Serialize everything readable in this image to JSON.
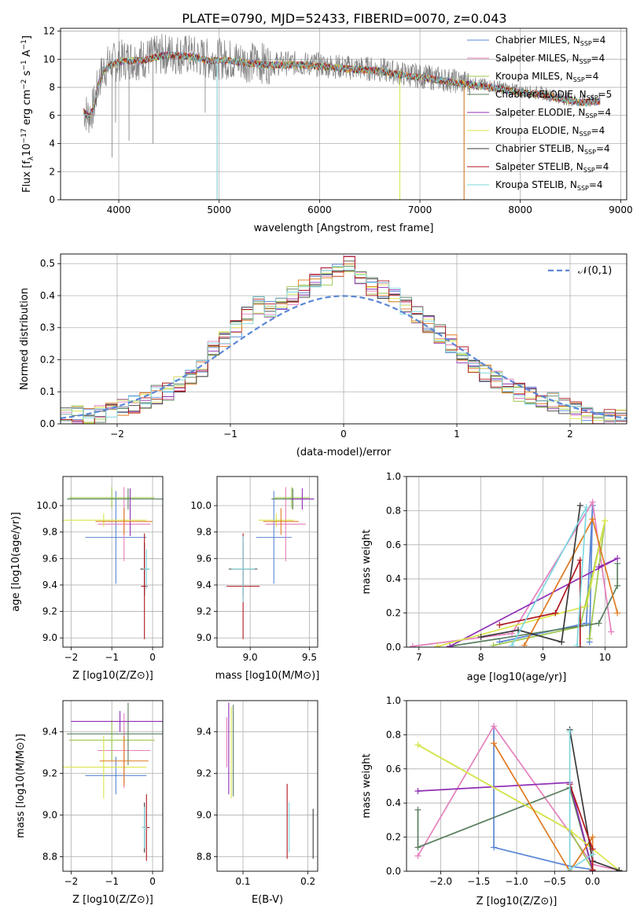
{
  "title": "PLATE=0790, MJD=52433, FIBERID=0070, z=0.043",
  "colors": {
    "Chabrier MILES": "#5b87d6",
    "Salpeter MILES": "#e57fbd",
    "Kroupa MILES": "#9ec74e",
    "Chabrier ELODIE": "#5a7f5f",
    "Salpeter ELODIE": "#8f2fb5",
    "Kroupa ELODIE": "#d9e64a",
    "Chabrier STELIB": "#3a3a3a",
    "Salpeter STELIB": "#b0161e",
    "Kroupa STELIB": "#7ed8e0",
    "orange": "#e07a20",
    "data": "#808080",
    "normal": "#5b87d6"
  },
  "chart_data": [
    {
      "id": "spectrum",
      "type": "line",
      "xlabel": "wavelength [Angstrom, rest frame]",
      "ylabel": "Flux [f_λ10^-17 erg cm^-2 s^-1 A^-1]",
      "xlim": [
        3420,
        9060
      ],
      "ylim": [
        0,
        12.2
      ],
      "xticks": [
        4000,
        5000,
        6000,
        7000,
        8000,
        9000
      ],
      "yticks": [
        0,
        2,
        4,
        6,
        8,
        10,
        12
      ],
      "legend_position": "top-right",
      "legend": [
        {
          "label": "Chabrier MILES, N",
          "sub": "SSP",
          "tail": "=4"
        },
        {
          "label": "Salpeter MILES, N",
          "sub": "SSP",
          "tail": "=4"
        },
        {
          "label": "Kroupa MILES, N",
          "sub": "SSP",
          "tail": "=4"
        },
        {
          "label": "Chabrier ELODIE, N",
          "sub": "SSP",
          "tail": "=5"
        },
        {
          "label": "Salpeter ELODIE, N",
          "sub": "SSP",
          "tail": "=4"
        },
        {
          "label": "Kroupa ELODIE, N",
          "sub": "SSP",
          "tail": "=4"
        },
        {
          "label": "Chabrier STELIB, N",
          "sub": "SSP",
          "tail": "=4"
        },
        {
          "label": "Salpeter STELIB, N",
          "sub": "SSP",
          "tail": "=4"
        },
        {
          "label": "Kroupa STELIB, N",
          "sub": "SSP",
          "tail": "=4"
        }
      ],
      "continuum": [
        [
          3650,
          6.4
        ],
        [
          3700,
          6.0
        ],
        [
          3750,
          6.6
        ],
        [
          3800,
          8.4
        ],
        [
          3850,
          9.3
        ],
        [
          3900,
          9.6
        ],
        [
          4000,
          9.9
        ],
        [
          4100,
          10.0
        ],
        [
          4200,
          10.0
        ],
        [
          4300,
          10.1
        ],
        [
          4400,
          10.3
        ],
        [
          4500,
          10.4
        ],
        [
          4700,
          10.3
        ],
        [
          4900,
          10.0
        ],
        [
          5100,
          10.0
        ],
        [
          5300,
          9.8
        ],
        [
          5500,
          9.7
        ],
        [
          5800,
          9.7
        ],
        [
          6000,
          9.6
        ],
        [
          6300,
          9.4
        ],
        [
          6560,
          9.3
        ],
        [
          6800,
          9.0
        ],
        [
          7000,
          8.8
        ],
        [
          7200,
          8.6
        ],
        [
          7400,
          8.4
        ],
        [
          7600,
          8.2
        ],
        [
          7800,
          8.0
        ],
        [
          8000,
          7.7
        ],
        [
          8200,
          7.6
        ],
        [
          8400,
          7.3
        ],
        [
          8600,
          7.0
        ],
        [
          8800,
          7.1
        ]
      ],
      "spikes_down": [
        [
          3933,
          3.0
        ],
        [
          3968,
          5.5
        ],
        [
          4102,
          4.2
        ],
        [
          4340,
          4.0
        ],
        [
          4861,
          6.2
        ],
        [
          4980,
          0.0
        ],
        [
          6800,
          0.0
        ],
        [
          7440,
          0.0
        ]
      ]
    },
    {
      "id": "residuals",
      "type": "histogram",
      "xlabel": "(data-model)/error",
      "ylabel": "Normed distribution",
      "xlim": [
        -2.5,
        2.5
      ],
      "ylim": [
        0,
        0.53
      ],
      "xticks": [
        -2,
        -1,
        0,
        1,
        2
      ],
      "yticks": [
        0.0,
        0.1,
        0.2,
        0.3,
        0.4,
        0.5
      ],
      "legend": "𝒩(0,1)",
      "legend_position": "top-right",
      "bin_width": 0.1,
      "series": [
        {
          "name": "Chabrier STELIB",
          "values": [
            0.02,
            0.03,
            0.02,
            0.03,
            0.04,
            0.05,
            0.06,
            0.07,
            0.09,
            0.1,
            0.12,
            0.14,
            0.17,
            0.23,
            0.27,
            0.3,
            0.34,
            0.37,
            0.36,
            0.38,
            0.4,
            0.42,
            0.44,
            0.46,
            0.48,
            0.5,
            0.45,
            0.43,
            0.42,
            0.4,
            0.37,
            0.34,
            0.31,
            0.28,
            0.25,
            0.22,
            0.19,
            0.16,
            0.14,
            0.12,
            0.1,
            0.09,
            0.08,
            0.07,
            0.06,
            0.04,
            0.03,
            0.02,
            0.02,
            0.02
          ]
        }
      ]
    },
    {
      "id": "age-vs-Z",
      "type": "errorbar",
      "xlabel": "Z [log10(Z/Z⊙)]",
      "ylabel": "age [log10(age/yr)]",
      "xlim": [
        -2.2,
        0.25
      ],
      "ylim": [
        8.93,
        10.22
      ],
      "xticks": [
        -2,
        -1,
        0
      ],
      "yticks": [
        9.0,
        9.2,
        9.4,
        9.6,
        9.8,
        10.0
      ],
      "points": [
        {
          "s": "Chabrier MILES",
          "x": -0.9,
          "y": 9.76,
          "xe": 0.75,
          "ye": 0.35
        },
        {
          "s": "Salpeter MILES",
          "x": -0.7,
          "y": 9.86,
          "xe": 0.65,
          "ye": 0.28
        },
        {
          "s": "Kroupa MILES",
          "x": -1.0,
          "y": 10.06,
          "xe": 1.05,
          "ye": 0.08
        },
        {
          "s": "Chabrier ELODIE",
          "x": -0.6,
          "y": 10.05,
          "xe": 1.5,
          "ye": 0.08
        },
        {
          "s": "Salpeter ELODIE",
          "x": -0.55,
          "y": 9.95,
          "xe": 0.0,
          "ye": 0.18
        },
        {
          "s": "Kroupa ELODIE",
          "x": -1.2,
          "y": 9.89,
          "xe": 1.05,
          "ye": 0.05
        },
        {
          "s": "orange",
          "x": -0.7,
          "y": 9.88,
          "xe": 0.7,
          "ye": 0.1
        },
        {
          "s": "Chabrier STELIB",
          "x": -0.2,
          "y": 9.52,
          "xe": 0.1,
          "ye": 0.2
        },
        {
          "s": "Salpeter STELIB",
          "x": -0.2,
          "y": 9.39,
          "xe": 0.08,
          "ye": 0.4
        },
        {
          "s": "Kroupa STELIB",
          "x": -0.15,
          "y": 9.52,
          "xe": 0.08,
          "ye": 0.15
        }
      ]
    },
    {
      "id": "age-vs-mass",
      "type": "errorbar",
      "xlabel": "mass [log10(M/M⊙)]",
      "xlim": [
        8.72,
        9.57
      ],
      "ylim": [
        8.93,
        10.22
      ],
      "xticks": [
        9.0,
        9.5
      ],
      "yticks": [
        9.0,
        9.2,
        9.4,
        9.6,
        9.8,
        10.0
      ],
      "points": [
        {
          "s": "Chabrier MILES",
          "x": 9.2,
          "y": 9.76,
          "xe": 0.15,
          "ye": 0.35
        },
        {
          "s": "Salpeter MILES",
          "x": 9.3,
          "y": 9.86,
          "xe": 0.17,
          "ye": 0.28
        },
        {
          "s": "Kroupa MILES",
          "x": 9.35,
          "y": 10.06,
          "xe": 0.15,
          "ye": 0.08
        },
        {
          "s": "Chabrier ELODIE",
          "x": 9.36,
          "y": 10.05,
          "xe": 0.18,
          "ye": 0.08
        },
        {
          "s": "Salpeter ELODIE",
          "x": 9.44,
          "y": 10.05,
          "xe": 0.1,
          "ye": 0.08
        },
        {
          "s": "Kroupa ELODIE",
          "x": 9.22,
          "y": 9.89,
          "xe": 0.15,
          "ye": 0.05
        },
        {
          "s": "orange",
          "x": 9.26,
          "y": 9.88,
          "xe": 0.15,
          "ye": 0.1
        },
        {
          "s": "Chabrier STELIB",
          "x": 8.94,
          "y": 9.52,
          "xe": 0.12,
          "ye": 0.2
        },
        {
          "s": "Salpeter STELIB",
          "x": 8.94,
          "y": 9.39,
          "xe": 0.14,
          "ye": 0.4
        },
        {
          "s": "Kroupa STELIB",
          "x": 8.94,
          "y": 9.52,
          "xe": 0.1,
          "ye": 0.25
        }
      ]
    },
    {
      "id": "weight-vs-age",
      "type": "line",
      "xlabel": "age [log10(age/yr)]",
      "ylabel": "mass weight",
      "xlim": [
        6.8,
        10.35
      ],
      "ylim": [
        0,
        1.0
      ],
      "xticks": [
        7,
        8,
        9,
        10
      ],
      "yticks": [
        0.0,
        0.2,
        0.4,
        0.6,
        0.8,
        1.0
      ],
      "series": [
        {
          "name": "Chabrier MILES",
          "x": [
            8.3,
            9.7,
            9.8,
            9.75
          ],
          "y": [
            0.03,
            0.14,
            0.83,
            0.03
          ]
        },
        {
          "name": "Salpeter MILES",
          "x": [
            6.9,
            8.5,
            9.8,
            10.1
          ],
          "y": [
            0.005,
            0.08,
            0.85,
            0.09
          ]
        },
        {
          "name": "Kroupa MILES",
          "x": [
            8.2,
            9.6,
            10.0,
            9.75
          ],
          "y": [
            0.01,
            0.12,
            0.74,
            0.05
          ]
        },
        {
          "name": "Chabrier ELODIE",
          "x": [
            7.5,
            9.9,
            10.2,
            10.2
          ],
          "y": [
            0.005,
            0.14,
            0.36,
            0.49
          ]
        },
        {
          "name": "Salpeter ELODIE",
          "x": [
            7.5,
            10.2,
            9.9
          ],
          "y": [
            0.005,
            0.52,
            0.47
          ]
        },
        {
          "name": "Kroupa ELODIE",
          "x": [
            7.3,
            9.7,
            10.0
          ],
          "y": [
            0.005,
            0.24,
            0.74
          ]
        },
        {
          "name": "orange",
          "x": [
            8.7,
            9.8,
            10.2
          ],
          "y": [
            0.01,
            0.75,
            0.2
          ]
        },
        {
          "name": "Chabrier STELIB",
          "x": [
            8.0,
            8.6,
            9.3,
            9.6
          ],
          "y": [
            0.06,
            0.1,
            0.03,
            0.83
          ]
        },
        {
          "name": "Salpeter STELIB",
          "x": [
            8.3,
            9.2,
            9.6,
            9.6
          ],
          "y": [
            0.13,
            0.2,
            0.51,
            0.0
          ]
        },
        {
          "name": "Kroupa STELIB",
          "x": [
            8.5,
            9.7,
            9.55
          ],
          "y": [
            0.01,
            0.82,
            0.01
          ]
        }
      ]
    },
    {
      "id": "mass-vs-Z",
      "type": "errorbar",
      "xlabel": "Z [log10(Z/Z⊙)]",
      "ylabel": "mass [log10(M/M⊙)]",
      "xlim": [
        -2.2,
        0.25
      ],
      "ylim": [
        8.73,
        9.55
      ],
      "xticks": [
        -2,
        -1,
        0
      ],
      "yticks": [
        8.8,
        9.0,
        9.2,
        9.4
      ],
      "points": [
        {
          "s": "Chabrier MILES",
          "x": -0.9,
          "y": 9.19,
          "xe": 0.75,
          "ye": 0.09
        },
        {
          "s": "Salpeter MILES",
          "x": -0.7,
          "y": 9.31,
          "xe": 0.65,
          "ye": 0.18
        },
        {
          "s": "Kroupa MILES",
          "x": -1.0,
          "y": 9.36,
          "xe": 1.05,
          "ye": 0.1
        },
        {
          "s": "Chabrier ELODIE",
          "x": -0.6,
          "y": 9.39,
          "xe": 1.5,
          "ye": 0.15
        },
        {
          "s": "Salpeter ELODIE",
          "x": -0.8,
          "y": 9.45,
          "xe": 1.2,
          "ye": 0.05
        },
        {
          "s": "Kroupa ELODIE",
          "x": -1.2,
          "y": 9.23,
          "xe": 1.05,
          "ye": 0.15
        },
        {
          "s": "orange",
          "x": -0.7,
          "y": 9.26,
          "xe": 0.6,
          "ye": 0.12
        },
        {
          "s": "Chabrier STELIB",
          "x": -0.2,
          "y": 8.94,
          "xe": 0.06,
          "ye": 0.12
        },
        {
          "s": "Salpeter STELIB",
          "x": -0.15,
          "y": 8.94,
          "xe": 0.08,
          "ye": 0.16
        },
        {
          "s": "Kroupa STELIB",
          "x": -0.2,
          "y": 8.94,
          "xe": 0.06,
          "ye": 0.1
        }
      ]
    },
    {
      "id": "mass-vs-ebv",
      "type": "errorbar",
      "xlabel": "E(B-V)",
      "xlim": [
        0.06,
        0.215
      ],
      "ylim": [
        8.73,
        9.55
      ],
      "xticks": [
        0.1,
        0.2
      ],
      "yticks": [
        8.8,
        9.0,
        9.2,
        9.4
      ],
      "points": [
        {
          "s": "Salpeter MILES",
          "x": 0.075,
          "y": 9.35,
          "xe": 0,
          "ye": 0.12
        },
        {
          "s": "Salpeter ELODIE",
          "x": 0.078,
          "y": 9.32,
          "xe": 0,
          "ye": 0.22
        },
        {
          "s": "Kroupa ELODIE",
          "x": 0.082,
          "y": 9.3,
          "xe": 0,
          "ye": 0.22
        },
        {
          "s": "Chabrier ELODIE",
          "x": 0.085,
          "y": 9.31,
          "xe": 0,
          "ye": 0.22
        },
        {
          "s": "Salpeter STELIB",
          "x": 0.168,
          "y": 8.97,
          "xe": 0,
          "ye": 0.18
        },
        {
          "s": "Kroupa STELIB",
          "x": 0.171,
          "y": 8.94,
          "xe": 0,
          "ye": 0.12
        },
        {
          "s": "Chabrier STELIB",
          "x": 0.208,
          "y": 8.91,
          "xe": 0,
          "ye": 0.12
        }
      ]
    },
    {
      "id": "weight-vs-Z",
      "type": "line",
      "xlabel": "Z [log10(Z/Z⊙)]",
      "ylabel": "mass weight",
      "xlim": [
        -2.45,
        0.45
      ],
      "ylim": [
        0,
        1.0
      ],
      "xticks": [
        -2.0,
        -1.5,
        -1.0,
        -0.5,
        0.0
      ],
      "yticks": [
        0.0,
        0.2,
        0.4,
        0.6,
        0.8,
        1.0
      ],
      "series": [
        {
          "name": "Chabrier MILES",
          "x": [
            -1.3,
            -1.3,
            -0.3,
            0.0
          ],
          "y": [
            0.85,
            0.14,
            0.03,
            0.01
          ]
        },
        {
          "name": "Salpeter MILES",
          "x": [
            -2.3,
            -1.3,
            0.0,
            0.35
          ],
          "y": [
            0.09,
            0.85,
            0.04,
            0.005
          ]
        },
        {
          "name": "Kroupa MILES",
          "x": [
            -2.3,
            -0.3,
            0.0
          ],
          "y": [
            0.74,
            0.24,
            0.01
          ]
        },
        {
          "name": "Chabrier ELODIE",
          "x": [
            -2.3,
            -2.3,
            -0.3,
            0.0
          ],
          "y": [
            0.36,
            0.14,
            0.49,
            0.005
          ]
        },
        {
          "name": "Salpeter ELODIE",
          "x": [
            -2.3,
            -0.3,
            0.0
          ],
          "y": [
            0.47,
            0.52,
            0.005
          ]
        },
        {
          "name": "Kroupa ELODIE",
          "x": [
            -2.3,
            -0.3,
            0.35
          ],
          "y": [
            0.74,
            0.24,
            0.005
          ]
        },
        {
          "name": "orange",
          "x": [
            -1.3,
            -0.3,
            0.0,
            0.0
          ],
          "y": [
            0.75,
            0.0,
            0.2,
            0.01
          ]
        },
        {
          "name": "Chabrier STELIB",
          "x": [
            -0.3,
            0.0,
            0.35
          ],
          "y": [
            0.83,
            0.06,
            0.005
          ]
        },
        {
          "name": "Salpeter STELIB",
          "x": [
            -0.3,
            0.0,
            0.0
          ],
          "y": [
            0.51,
            0.13,
            0.0
          ]
        },
        {
          "name": "Kroupa STELIB",
          "x": [
            -0.3,
            -0.3,
            0.0
          ],
          "y": [
            0.82,
            0.01,
            0.1
          ]
        }
      ]
    }
  ]
}
